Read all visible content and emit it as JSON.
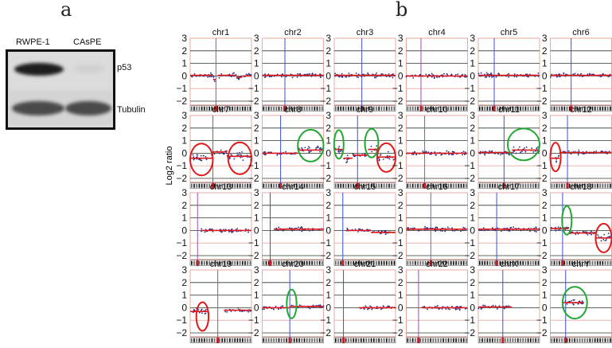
{
  "panel_a": {
    "letter": "a",
    "columns": [
      "RWPE-1",
      "CAsPE"
    ],
    "rows": [
      {
        "label": "p53",
        "intensity": [
          1.0,
          0.05
        ]
      },
      {
        "label": "Tubulin",
        "intensity": [
          0.9,
          0.9
        ]
      }
    ]
  },
  "panel_b": {
    "letter": "b",
    "ylabel": "Log2 ratio"
  },
  "chart_data": {
    "type": "scatter",
    "ylabel": "Log2 ratio",
    "ylim": [
      -2.3,
      3
    ],
    "yticks": [
      "3",
      "2",
      "1",
      "0",
      "−1",
      "−2"
    ],
    "yticks_values": [
      3,
      2,
      1,
      0,
      -1,
      -2
    ],
    "grid": true,
    "colors": {
      "points": "#2a2d8a",
      "segments": "#e01a1a",
      "centromere": "#3b4fd8",
      "gain_circle": "#22a832",
      "loss_circle": "#e01a1a"
    },
    "panels": [
      {
        "name": "chr1",
        "cen": 0.42,
        "segments": [
          [
            0,
            0.38,
            0.05
          ],
          [
            0.38,
            0.42,
            -0.3
          ],
          [
            0.45,
            0.75,
            0.05
          ],
          [
            0.75,
            0.85,
            -0.1
          ],
          [
            0.85,
            1,
            0.0
          ]
        ],
        "circles": []
      },
      {
        "name": "chr2",
        "cen": 0.37,
        "segments": [
          [
            0,
            1,
            0.05
          ]
        ],
        "circles": []
      },
      {
        "name": "chr3",
        "cen": 0.45,
        "segments": [
          [
            0,
            1,
            0.05
          ]
        ],
        "circles": []
      },
      {
        "name": "chr4",
        "cen": 0.24,
        "segments": [
          [
            0,
            1,
            0.0
          ]
        ],
        "circles": []
      },
      {
        "name": "chr5",
        "cen": 0.26,
        "segments": [
          [
            0,
            1,
            0.05
          ]
        ],
        "circles": []
      },
      {
        "name": "chr6",
        "cen": 0.34,
        "segments": [
          [
            0,
            1,
            0.05
          ]
        ],
        "circles": []
      },
      {
        "name": "chr7",
        "cen": 0.37,
        "segments": [
          [
            0,
            0.37,
            -0.4
          ],
          [
            0.37,
            0.6,
            0.1
          ],
          [
            0.6,
            1,
            -0.25
          ]
        ],
        "circles": [
          {
            "color": "loss",
            "from": 0,
            "to": 0.37,
            "center": -0.5
          },
          {
            "color": "loss",
            "from": 0.62,
            "to": 1,
            "center": -0.4
          }
        ]
      },
      {
        "name": "chr8",
        "cen": 0.3,
        "segments": [
          [
            0,
            0.58,
            0.0
          ],
          [
            0.58,
            1,
            0.25
          ]
        ],
        "circles": [
          {
            "color": "gain",
            "from": 0.58,
            "to": 1,
            "center": 0.6
          }
        ]
      },
      {
        "name": "chr9",
        "cen": 0.38,
        "segments": [
          [
            0,
            0.15,
            0.3
          ],
          [
            0.15,
            0.3,
            -0.4
          ],
          [
            0.3,
            0.55,
            -0.15
          ],
          [
            0.55,
            0.7,
            0.3
          ],
          [
            0.7,
            1,
            -0.3
          ]
        ],
        "circles": [
          {
            "color": "gain",
            "from": 0,
            "to": 0.15,
            "center": 0.7
          },
          {
            "color": "gain",
            "from": 0.5,
            "to": 0.72,
            "center": 0.8
          },
          {
            "color": "loss",
            "from": 0.7,
            "to": 1,
            "center": -0.35
          }
        ]
      },
      {
        "name": "chr10",
        "cen": 0.3,
        "segments": [
          [
            0,
            1,
            0.0
          ]
        ],
        "circles": []
      },
      {
        "name": "chr11",
        "cen": 0.42,
        "segments": [
          [
            0,
            0.55,
            0.05
          ],
          [
            0.55,
            1,
            0.25
          ]
        ],
        "circles": [
          {
            "color": "gain",
            "from": 0.48,
            "to": 1,
            "center": 0.7
          }
        ]
      },
      {
        "name": "chr12",
        "cen": 0.28,
        "segments": [
          [
            0,
            0.15,
            -0.4
          ],
          [
            0.15,
            1,
            0.05
          ]
        ],
        "circles": [
          {
            "color": "loss",
            "from": 0,
            "to": 0.17,
            "center": -0.3
          }
        ]
      },
      {
        "name": "chr13",
        "cen": 0.12,
        "segments": [
          [
            0.18,
            1,
            0.0
          ]
        ],
        "circles": []
      },
      {
        "name": "chr14",
        "cen": 0.13,
        "segments": [
          [
            0.2,
            1,
            0.1
          ]
        ],
        "circles": []
      },
      {
        "name": "chr15",
        "cen": 0.14,
        "segments": [
          [
            0.2,
            0.6,
            0.0
          ],
          [
            0.6,
            1,
            -0.15
          ]
        ],
        "circles": []
      },
      {
        "name": "chr16",
        "cen": 0.4,
        "segments": [
          [
            0,
            1,
            0.1
          ]
        ],
        "circles": []
      },
      {
        "name": "chr17",
        "cen": 0.3,
        "segments": [
          [
            0,
            1,
            0.1
          ]
        ],
        "circles": []
      },
      {
        "name": "chr18",
        "cen": 0.2,
        "segments": [
          [
            0,
            0.3,
            0.15
          ],
          [
            0.3,
            0.75,
            -0.2
          ],
          [
            0.75,
            1,
            -0.6
          ]
        ],
        "circles": [
          {
            "color": "gain",
            "from": 0.2,
            "to": 0.34,
            "center": 0.8
          },
          {
            "color": "loss",
            "from": 0.74,
            "to": 1,
            "center": -0.6
          }
        ]
      },
      {
        "name": "chr19",
        "cen": 0.45,
        "segments": [
          [
            0,
            0.3,
            -0.3
          ],
          [
            0.55,
            1,
            -0.2
          ]
        ],
        "circles": [
          {
            "color": "loss",
            "from": 0.1,
            "to": 0.3,
            "center": -0.7
          }
        ]
      },
      {
        "name": "chr20",
        "cen": 0.45,
        "segments": [
          [
            0,
            0.45,
            0.0
          ],
          [
            0.45,
            1,
            0.1
          ]
        ],
        "circles": [
          {
            "color": "gain",
            "from": 0.4,
            "to": 0.56,
            "center": 0.3
          }
        ]
      },
      {
        "name": "chr21",
        "cen": 0.15,
        "segments": [
          [
            0.4,
            1,
            0.0
          ]
        ],
        "circles": []
      },
      {
        "name": "chr22",
        "cen": 0.2,
        "segments": [
          [
            0.25,
            1,
            0.0
          ]
        ],
        "circles": []
      },
      {
        "name": "chrX",
        "cen": 0.4,
        "segments": [
          [
            0,
            0.55,
            0.05
          ]
        ],
        "circles": []
      },
      {
        "name": "chrY",
        "cen": 0.25,
        "segments": [
          [
            0.2,
            0.55,
            0.4
          ]
        ],
        "circles": [
          {
            "color": "gain",
            "from": 0.2,
            "to": 0.6,
            "center": 0.4
          }
        ]
      }
    ]
  }
}
